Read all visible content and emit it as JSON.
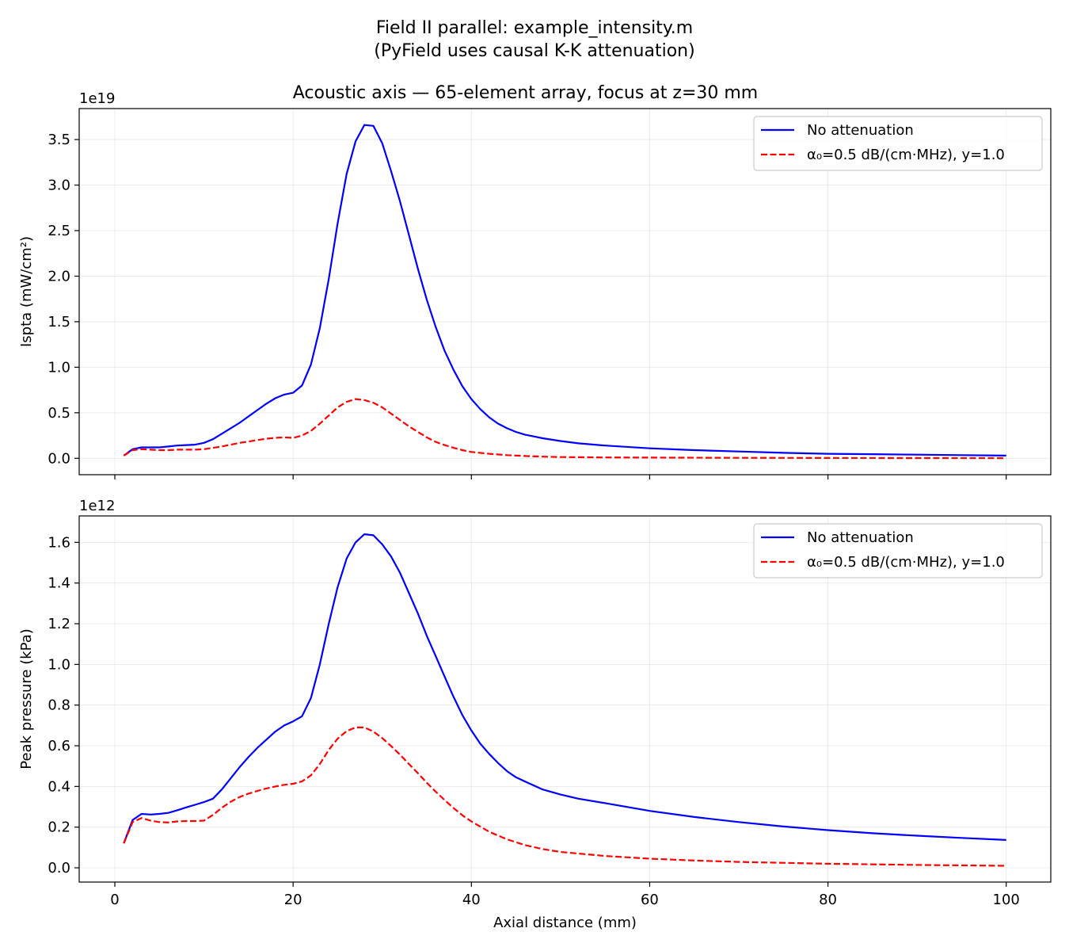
{
  "figure": {
    "suptitle_line1": "Field II parallel: example_intensity.m",
    "suptitle_line2": "(PyField uses causal K-K attenuation)"
  },
  "chart_data": [
    {
      "type": "line",
      "title": "Acoustic axis — 65-element array, focus at z=30 mm",
      "xlabel": "",
      "ylabel": "Ispta (mW/cm²)",
      "offset_label": "1e19",
      "xlim": [
        -4,
        105
      ],
      "ylim": [
        -0.18,
        3.84
      ],
      "x_ticks": [
        0,
        20,
        40,
        60,
        80,
        100
      ],
      "x_tick_labels": [
        "",
        "",
        "",
        "",
        "",
        ""
      ],
      "y_ticks": [
        0.0,
        0.5,
        1.0,
        1.5,
        2.0,
        2.5,
        3.0,
        3.5
      ],
      "y_tick_labels": [
        "0.0",
        "0.5",
        "1.0",
        "1.5",
        "2.0",
        "2.5",
        "3.0",
        "3.5"
      ],
      "grid": true,
      "legend_position": "top-right",
      "series": [
        {
          "name": "No attenuation",
          "color": "#0000ff",
          "dash": "solid",
          "x": [
            1,
            2,
            3,
            4,
            5,
            6,
            7,
            8,
            9,
            10,
            11,
            12,
            13,
            14,
            15,
            16,
            17,
            18,
            19,
            20,
            21,
            22,
            23,
            24,
            25,
            26,
            27,
            28,
            29,
            30,
            31,
            32,
            33,
            34,
            35,
            36,
            37,
            38,
            39,
            40,
            41,
            42,
            43,
            44,
            45,
            46,
            47,
            48,
            50,
            52,
            55,
            60,
            65,
            70,
            75,
            80,
            85,
            90,
            95,
            100
          ],
          "y": [
            0.03,
            0.1,
            0.12,
            0.12,
            0.12,
            0.13,
            0.14,
            0.145,
            0.15,
            0.17,
            0.21,
            0.27,
            0.33,
            0.39,
            0.46,
            0.53,
            0.6,
            0.66,
            0.7,
            0.72,
            0.8,
            1.03,
            1.43,
            1.97,
            2.58,
            3.12,
            3.48,
            3.66,
            3.65,
            3.46,
            3.15,
            2.82,
            2.45,
            2.08,
            1.74,
            1.44,
            1.18,
            0.97,
            0.79,
            0.65,
            0.54,
            0.45,
            0.38,
            0.33,
            0.29,
            0.26,
            0.24,
            0.22,
            0.19,
            0.165,
            0.14,
            0.11,
            0.09,
            0.075,
            0.06,
            0.05,
            0.045,
            0.04,
            0.035,
            0.03
          ]
        },
        {
          "name": "α₀=0.5 dB/(cm·MHz), y=1.0",
          "color": "#ff0000",
          "dash": "dashed",
          "x": [
            1,
            2,
            3,
            4,
            5,
            6,
            7,
            8,
            9,
            10,
            11,
            12,
            13,
            14,
            15,
            16,
            17,
            18,
            19,
            20,
            21,
            22,
            23,
            24,
            25,
            26,
            27,
            28,
            29,
            30,
            31,
            32,
            33,
            34,
            35,
            36,
            37,
            38,
            39,
            40,
            42,
            44,
            46,
            48,
            50,
            55,
            60,
            70,
            80,
            90,
            100
          ],
          "y": [
            0.03,
            0.09,
            0.1,
            0.095,
            0.09,
            0.09,
            0.095,
            0.095,
            0.095,
            0.1,
            0.115,
            0.13,
            0.15,
            0.17,
            0.185,
            0.2,
            0.215,
            0.225,
            0.23,
            0.225,
            0.25,
            0.3,
            0.38,
            0.47,
            0.56,
            0.62,
            0.65,
            0.64,
            0.61,
            0.56,
            0.49,
            0.42,
            0.35,
            0.29,
            0.23,
            0.18,
            0.145,
            0.115,
            0.09,
            0.07,
            0.05,
            0.035,
            0.025,
            0.018,
            0.014,
            0.01,
            0.008,
            0.005,
            0.004,
            0.003,
            0.002
          ]
        }
      ]
    },
    {
      "type": "line",
      "title": "",
      "xlabel": "Axial distance (mm)",
      "ylabel": "Peak pressure (kPa)",
      "offset_label": "1e12",
      "xlim": [
        -4,
        105
      ],
      "ylim": [
        -0.07,
        1.73
      ],
      "x_ticks": [
        0,
        20,
        40,
        60,
        80,
        100
      ],
      "x_tick_labels": [
        "0",
        "20",
        "40",
        "60",
        "80",
        "100"
      ],
      "y_ticks": [
        0.0,
        0.2,
        0.4,
        0.6,
        0.8,
        1.0,
        1.2,
        1.4,
        1.6
      ],
      "y_tick_labels": [
        "0.0",
        "0.2",
        "0.4",
        "0.6",
        "0.8",
        "1.0",
        "1.2",
        "1.4",
        "1.6"
      ],
      "grid": true,
      "legend_position": "top-right",
      "series": [
        {
          "name": "No attenuation",
          "color": "#0000ff",
          "dash": "solid",
          "x": [
            1,
            2,
            3,
            4,
            5,
            6,
            7,
            8,
            9,
            10,
            11,
            12,
            13,
            14,
            15,
            16,
            17,
            18,
            19,
            20,
            21,
            22,
            23,
            24,
            25,
            26,
            27,
            28,
            29,
            30,
            31,
            32,
            33,
            34,
            35,
            36,
            37,
            38,
            39,
            40,
            41,
            42,
            43,
            44,
            45,
            46,
            48,
            50,
            52,
            55,
            60,
            65,
            70,
            75,
            80,
            85,
            90,
            95,
            100
          ],
          "y": [
            0.12,
            0.235,
            0.265,
            0.262,
            0.265,
            0.27,
            0.283,
            0.297,
            0.31,
            0.323,
            0.34,
            0.385,
            0.44,
            0.495,
            0.545,
            0.59,
            0.63,
            0.67,
            0.7,
            0.72,
            0.745,
            0.835,
            1.0,
            1.2,
            1.38,
            1.52,
            1.6,
            1.64,
            1.635,
            1.59,
            1.53,
            1.45,
            1.35,
            1.25,
            1.14,
            1.04,
            0.94,
            0.84,
            0.75,
            0.675,
            0.61,
            0.56,
            0.515,
            0.475,
            0.445,
            0.425,
            0.385,
            0.36,
            0.34,
            0.318,
            0.28,
            0.25,
            0.225,
            0.203,
            0.185,
            0.17,
            0.158,
            0.147,
            0.137
          ]
        },
        {
          "name": "α₀=0.5 dB/(cm·MHz), y=1.0",
          "color": "#ff0000",
          "dash": "dashed",
          "x": [
            1,
            2,
            3,
            4,
            5,
            6,
            7,
            8,
            9,
            10,
            11,
            12,
            13,
            14,
            15,
            16,
            17,
            18,
            19,
            20,
            21,
            22,
            23,
            24,
            25,
            26,
            27,
            28,
            29,
            30,
            31,
            32,
            33,
            34,
            35,
            36,
            37,
            38,
            39,
            40,
            42,
            44,
            46,
            48,
            50,
            55,
            60,
            65,
            70,
            80,
            90,
            100
          ],
          "y": [
            0.12,
            0.225,
            0.245,
            0.232,
            0.225,
            0.223,
            0.228,
            0.23,
            0.23,
            0.232,
            0.26,
            0.295,
            0.325,
            0.348,
            0.365,
            0.378,
            0.39,
            0.4,
            0.408,
            0.413,
            0.425,
            0.455,
            0.51,
            0.58,
            0.635,
            0.672,
            0.69,
            0.69,
            0.67,
            0.638,
            0.598,
            0.556,
            0.51,
            0.465,
            0.418,
            0.374,
            0.333,
            0.294,
            0.258,
            0.228,
            0.177,
            0.14,
            0.112,
            0.092,
            0.078,
            0.058,
            0.045,
            0.036,
            0.029,
            0.02,
            0.014,
            0.01
          ]
        }
      ]
    }
  ]
}
